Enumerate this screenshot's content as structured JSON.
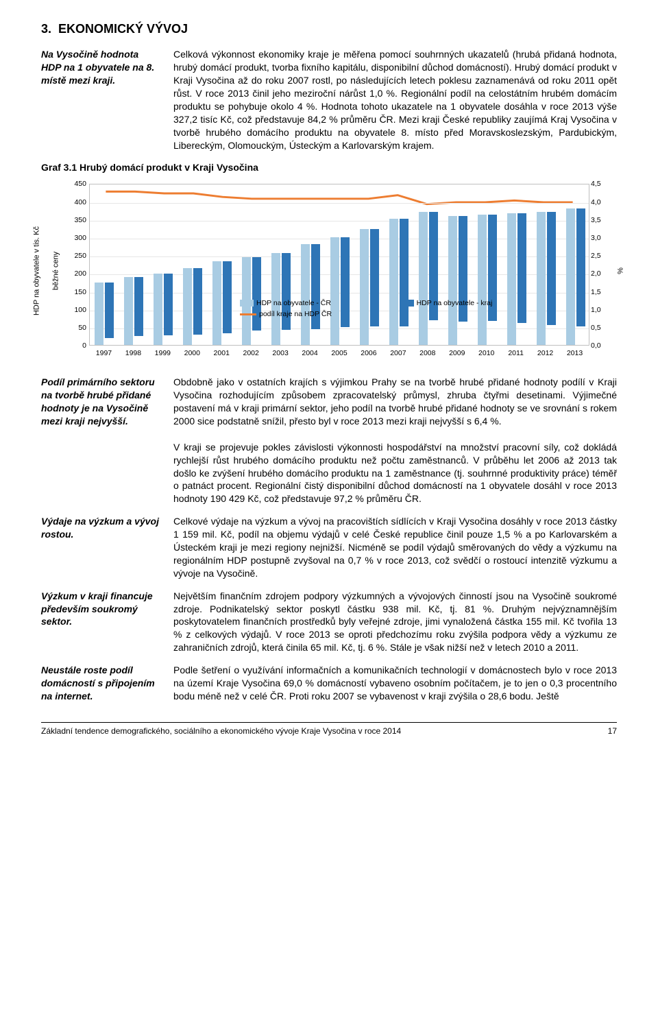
{
  "section": {
    "number": "3.",
    "title": "EKONOMICKÝ VÝVOJ"
  },
  "block1": {
    "side": "Na Vysočině hodnota HDP na 1 obyvatele na 8. místě mezi kraji.",
    "body": "Celková výkonnost ekonomiky kraje je měřena pomocí souhrnných ukazatelů (hrubá přidaná hodnota, hrubý domácí produkt, tvorba fixního kapitálu, disponibilní důchod domácností). Hrubý domácí produkt v Kraji Vysočina až do roku 2007 rostl, po následujících letech poklesu zaznamenává od roku 2011 opět růst. V roce 2013 činil jeho meziroční nárůst 1,0 %. Regionální podíl na celostátním hrubém domácím produktu se pohybuje okolo 4 %. Hodnota tohoto ukazatele na 1 obyvatele dosáhla v roce 2013 výše 327,2 tisíc Kč, což představuje 84,2 % průměru ČR. Mezi kraji České republiky zaujímá Kraj Vysočina v tvorbě hrubého domácího produktu na obyvatele 8. místo před Moravskoslezským, Pardubickým, Libereckým, Olomouckým, Ústeckým a Karlovarským krajem."
  },
  "chart": {
    "title": "Graf 3.1 Hrubý domácí produkt v Kraji Vysočina",
    "y_left_label": "HDP na obyvatele v tis. Kč",
    "y_left_label2": "běžné ceny",
    "y_right_label": "%",
    "type": "bar+line",
    "years": [
      "1997",
      "1998",
      "1999",
      "2000",
      "2001",
      "2002",
      "2003",
      "2004",
      "2005",
      "2006",
      "2007",
      "2008",
      "2009",
      "2010",
      "2011",
      "2012",
      "2013"
    ],
    "series_bars": [
      {
        "name": "HDP na obyvatele - ČR",
        "color": "#a9cce3",
        "data": [
          175,
          190,
          198,
          215,
          233,
          245,
          257,
          280,
          300,
          322,
          352,
          370,
          360,
          363,
          367,
          370,
          380
        ]
      },
      {
        "name": "HDP na obyvatele - kraj",
        "color": "#2e75b6",
        "data": [
          155,
          165,
          170,
          185,
          200,
          205,
          215,
          235,
          250,
          270,
          300,
          300,
          295,
          295,
          305,
          315,
          327
        ]
      }
    ],
    "series_lines": [
      {
        "name": "podíl kraje na HDP ČR",
        "color": "#ed7d31",
        "data": [
          4.3,
          4.3,
          4.25,
          4.25,
          4.15,
          4.1,
          4.1,
          4.1,
          4.1,
          4.1,
          4.2,
          3.95,
          4.0,
          4.0,
          4.05,
          4.0,
          4.0
        ]
      }
    ],
    "y_left": {
      "min": 0,
      "max": 450,
      "step": 50
    },
    "y_right": {
      "min": 0,
      "max": 4.5,
      "step": 0.5
    },
    "legend": {
      "bar_cr": "HDP na obyvatele - ČR",
      "bar_kraj": "HDP na obyvatele - kraj",
      "line": "podíl kraje na HDP ČR"
    },
    "grid_color": "#e6e6e6",
    "background": "#ffffff"
  },
  "block2": {
    "side": "Podíl primárního sektoru na tvorbě hrubé přidané hodnoty je na Vysočině mezi kraji nejvyšší.",
    "body": "Obdobně jako v ostatních krajích s výjimkou Prahy se na tvorbě hrubé přidané hodnoty podílí v Kraji Vysočina rozhodujícím způsobem zpracovatelský průmysl, zhruba čtyřmi desetinami. Výjimečné postavení má v kraji primární sektor, jeho podíl na tvorbě hrubé přidané hodnoty se ve srovnání s rokem 2000 sice podstatně snížil, přesto byl v roce 2013 mezi kraji nejvyšší s 6,4 %.",
    "body2": "V kraji se projevuje pokles závislosti výkonnosti hospodářství na množství pracovní síly, což dokládá rychlejší růst hrubého domácího produktu než počtu zaměstnanců. V průběhu let 2006 až 2013 tak došlo ke zvýšení hrubého domácího produktu na 1 zaměstnance (tj. souhrnné produktivity práce) téměř o patnáct procent. Regionální čistý disponibilní důchod domácností na 1 obyvatele dosáhl v roce 2013 hodnoty 190 429 Kč, což představuje 97,2 % průměru ČR."
  },
  "block3": {
    "side": "Výdaje na výzkum a vývoj rostou.",
    "body": "Celkové výdaje na výzkum a vývoj na pracovištích sídlících v Kraji Vysočina dosáhly v roce 2013 částky 1 159 mil. Kč, podíl na objemu výdajů v celé České republice činil pouze 1,5 % a po Karlovarském a Ústeckém kraji je mezi regiony nejnižší. Nicméně se podíl výdajů směrovaných do vědy a výzkumu na regionálním HDP postupně zvyšoval na 0,7 % v roce 2013, což svědčí o rostoucí intenzitě výzkumu a vývoje na Vysočině."
  },
  "block4": {
    "side": "Výzkum v kraji financuje především soukromý sektor.",
    "body": "Největším finančním zdrojem podpory výzkumných a vývojových činností jsou na Vysočině soukromé zdroje. Podnikatelský sektor poskytl částku 938 mil. Kč, tj. 81 %. Druhým nejvýznamnějším poskytovatelem finančních prostředků byly veřejné zdroje, jimi vynaložená částka 155 mil. Kč tvořila 13 % z celkových výdajů. V roce 2013 se oproti předchozímu roku zvýšila podpora vědy a výzkumu ze zahraničních zdrojů, která činila 65 mil. Kč, tj. 6 %. Stále je však nižší než v letech 2010 a 2011."
  },
  "block5": {
    "side": "Neustále roste podíl domácností s připojením na internet.",
    "body": "Podle šetření o využívání informačních a komunikačních technologií v domácnostech bylo v roce 2013 na území Kraje Vysočina 69,0 % domácností vybaveno osobním počítačem, je to jen o 0,3 procentního bodu méně než v celé ČR. Proti roku 2007 se vybavenost v kraji zvýšila o 28,6 bodu. Ještě"
  },
  "footer": {
    "text": "Základní tendence demografického, sociálního a ekonomického vývoje Kraje Vysočina v roce 2014",
    "page": "17"
  }
}
